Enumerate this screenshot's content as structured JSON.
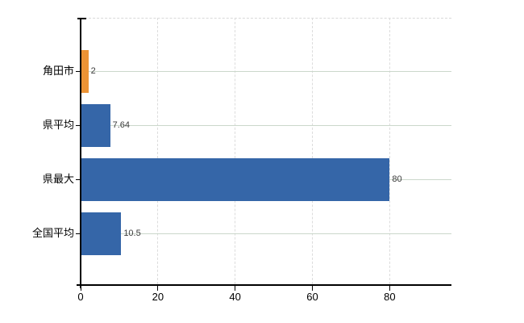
{
  "chart_data": {
    "type": "bar",
    "orientation": "horizontal",
    "title": "",
    "categories": [
      "角田市",
      "県平均",
      "県最大",
      "全国平均"
    ],
    "values": [
      2,
      7.64,
      80,
      10.5
    ],
    "value_labels": [
      "2",
      "7.64",
      "80",
      "10.5"
    ],
    "highlight_index": 0,
    "x_tick_values": [
      0,
      20,
      40,
      60,
      80
    ],
    "x_tick_labels": [
      "0",
      "20",
      "40",
      "60",
      "80"
    ],
    "xlim": [
      0,
      96
    ],
    "grid": {
      "horizontal": "solid",
      "vertical": "dashed",
      "top_border": "dashed"
    },
    "legend": null,
    "colors": {
      "highlight_bar": "#EC9335",
      "default_bar": "#3566A8",
      "horizontal_gridline": "#CBD7CB",
      "vertical_gridline": "#DCDCDC",
      "axis": "#000000",
      "value_label": "#3C3C3C",
      "tick_label": "#000000",
      "background": "#FFFFFF"
    }
  }
}
